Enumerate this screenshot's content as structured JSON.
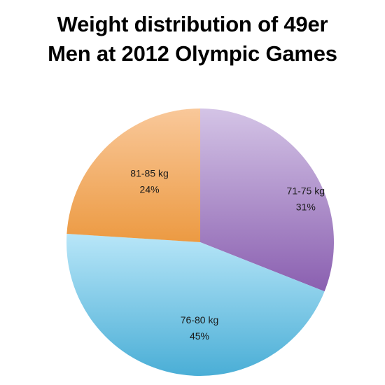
{
  "chart_data": {
    "type": "pie",
    "title_lines": [
      "Weight distribution of 49er",
      "Men at 2012 Olympic Games"
    ],
    "slices": [
      {
        "label": "71-75 kg",
        "value": 31,
        "pct_label": "31%",
        "color_light": "#d4c4e6",
        "color_dark": "#8a5fb0"
      },
      {
        "label": "76-80 kg",
        "value": 45,
        "pct_label": "45%",
        "color_light": "#b8e6f8",
        "color_dark": "#4aaed6"
      },
      {
        "label": "81-85 kg",
        "value": 24,
        "pct_label": "24%",
        "color_light": "#f9c89a",
        "color_dark": "#ec9a42"
      }
    ],
    "start_angle_deg": 0,
    "direction": "clockwise",
    "legend": "none",
    "grid": false
  }
}
